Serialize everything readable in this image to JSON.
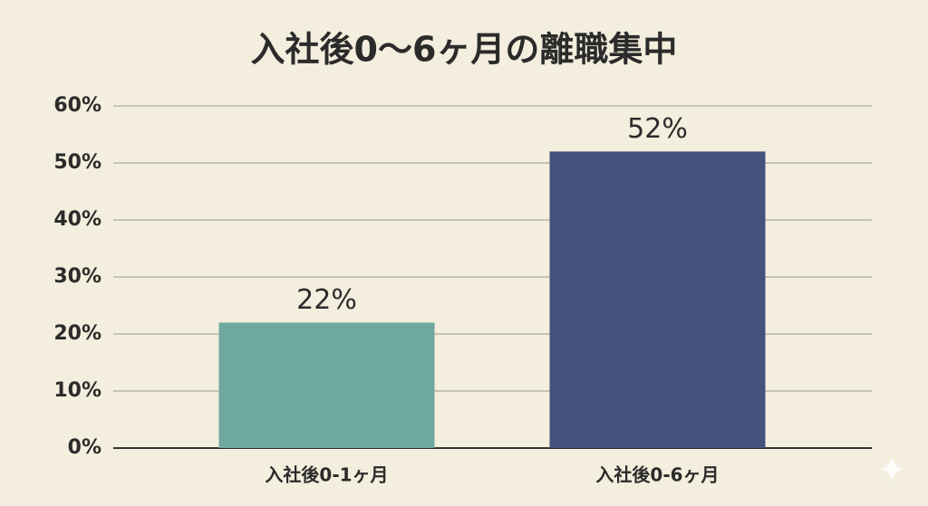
{
  "chart_data": {
    "type": "bar",
    "title": "入社後0〜6ヶ月の離職集中",
    "categories": [
      "入社後0-1ヶ月",
      "入社後0-6ヶ月"
    ],
    "values": [
      22,
      52
    ],
    "value_labels": [
      "22%",
      "52%"
    ],
    "colors": [
      "#6fa89f",
      "#44537b"
    ],
    "ylim": [
      0,
      60
    ],
    "yticks": [
      {
        "value": 0,
        "label": "0%"
      },
      {
        "value": 10,
        "label": "10%"
      },
      {
        "value": 20,
        "label": "20%"
      },
      {
        "value": 30,
        "label": "30%"
      },
      {
        "value": 40,
        "label": "40%"
      },
      {
        "value": 50,
        "label": "50%"
      },
      {
        "value": 60,
        "label": "60%"
      }
    ],
    "grid": true
  }
}
